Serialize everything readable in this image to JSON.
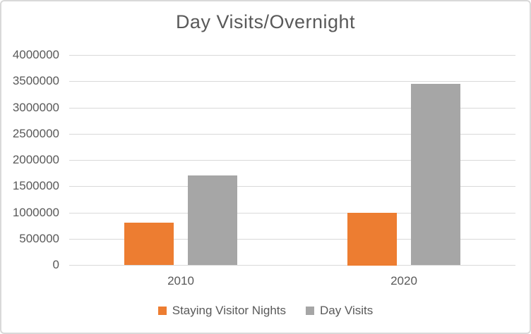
{
  "chart_data": {
    "type": "bar",
    "title": "Day Visits/Overnight",
    "categories": [
      "2010",
      "2020"
    ],
    "series": [
      {
        "name": "Staying Visitor Nights",
        "color": "#ED7D31",
        "values": [
          800000,
          1000000
        ]
      },
      {
        "name": "Day Visits",
        "color": "#A6A6A6",
        "values": [
          1700000,
          3450000
        ]
      }
    ],
    "xlabel": "",
    "ylabel": "",
    "ylim": [
      0,
      4000000
    ],
    "ytick_step": 500000,
    "ytick_labels": [
      "0",
      "500000",
      "1000000",
      "1500000",
      "2000000",
      "2500000",
      "3000000",
      "3500000",
      "4000000"
    ],
    "grid": true,
    "legend_position": "bottom"
  },
  "style": {
    "background": "#FFFFFF",
    "border_color": "#D9D9D9",
    "gridline_color": "#D9D9D9",
    "text_color": "#595959",
    "accent_orange": "#ED7D31",
    "series_gray": "#A6A6A6"
  }
}
